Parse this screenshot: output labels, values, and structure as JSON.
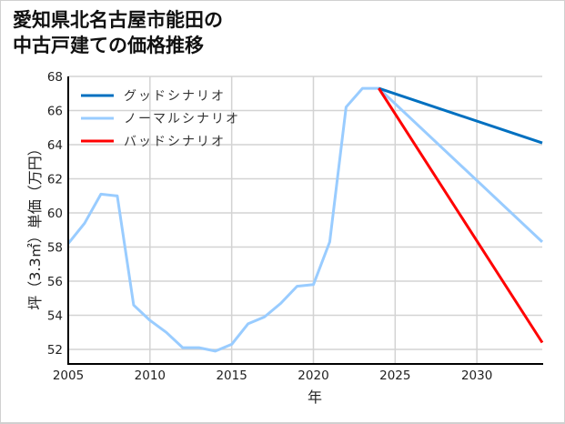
{
  "title_lines": [
    "愛知県北名古屋市能田の",
    "中古戸建ての価格推移"
  ],
  "chart_data": {
    "type": "line",
    "title": "愛知県北名古屋市能田の中古戸建ての価格推移",
    "xlabel": "年",
    "ylabel": "坪（3.3㎡）単価（万円）",
    "xlim": [
      2005,
      2034
    ],
    "ylim": [
      51.2,
      68
    ],
    "x_ticks": [
      2005,
      2010,
      2015,
      2020,
      2025,
      2030
    ],
    "y_ticks": [
      52,
      54,
      56,
      58,
      60,
      62,
      64,
      66,
      68
    ],
    "grid": true,
    "legend_position": "upper left",
    "series": [
      {
        "name": "グッドシナリオ",
        "color": "#0070c0",
        "x": [
          2024,
          2034
        ],
        "values": [
          67.3,
          64.1
        ]
      },
      {
        "name": "ノーマルシナリオ",
        "color": "#99ccff",
        "x": [
          2005,
          2006,
          2007,
          2008,
          2009,
          2010,
          2011,
          2012,
          2013,
          2014,
          2015,
          2016,
          2017,
          2018,
          2019,
          2020,
          2021,
          2022,
          2023,
          2024,
          2034
        ],
        "values": [
          58.2,
          59.4,
          61.1,
          61.0,
          54.6,
          53.7,
          53.0,
          52.1,
          52.1,
          51.9,
          52.3,
          53.5,
          53.9,
          54.7,
          55.7,
          55.8,
          58.3,
          66.2,
          67.3,
          67.3,
          58.3
        ]
      },
      {
        "name": "バッドシナリオ",
        "color": "#ff0000",
        "x": [
          2024,
          2034
        ],
        "values": [
          67.3,
          52.4
        ]
      }
    ]
  }
}
